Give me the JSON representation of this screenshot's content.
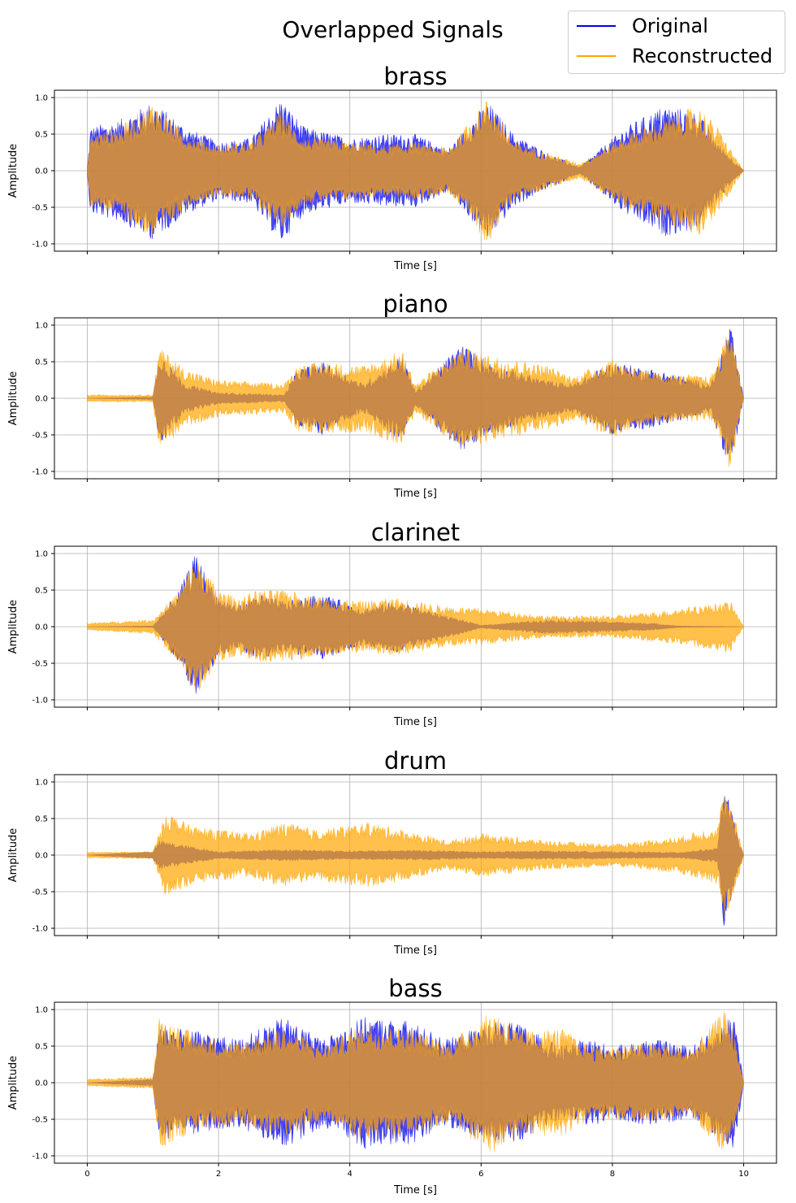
{
  "figure": {
    "title": "Overlapped Signals",
    "legend": [
      {
        "name": "Original",
        "color": "#0000ee"
      },
      {
        "name": "Reconstructed",
        "color": "#ffa500"
      }
    ]
  },
  "chart_data": [
    {
      "type": "line",
      "title": "brass",
      "xlabel": "Time [s]",
      "ylabel": "Amplitude",
      "xlim": [
        -0.5,
        10.5
      ],
      "ylim": [
        -1.1,
        1.1
      ],
      "xticks": [
        0,
        2,
        4,
        6,
        8,
        10
      ],
      "yticks": [
        -1.0,
        -0.5,
        0.0,
        0.5,
        1.0
      ],
      "show_x_tick_labels": false,
      "grid": true,
      "series": [
        {
          "name": "Original",
          "color": "#0000ee",
          "envelope": [
            [
              0,
              0
            ],
            [
              0.05,
              0.6
            ],
            [
              0.5,
              0.7
            ],
            [
              1.0,
              0.95
            ],
            [
              1.5,
              0.6
            ],
            [
              2.0,
              0.4
            ],
            [
              2.5,
              0.45
            ],
            [
              2.95,
              1.0
            ],
            [
              3.3,
              0.6
            ],
            [
              4.0,
              0.45
            ],
            [
              4.5,
              0.5
            ],
            [
              5.0,
              0.5
            ],
            [
              5.5,
              0.3
            ],
            [
              6.1,
              0.95
            ],
            [
              6.5,
              0.5
            ],
            [
              7.0,
              0.25
            ],
            [
              7.5,
              0.05
            ],
            [
              8.2,
              0.6
            ],
            [
              8.8,
              0.9
            ],
            [
              9.3,
              0.8
            ],
            [
              9.6,
              0.4
            ],
            [
              10.0,
              0.0
            ]
          ]
        },
        {
          "name": "Reconstructed",
          "color": "#ffa500",
          "envelope": [
            [
              0,
              0
            ],
            [
              0.05,
              0.5
            ],
            [
              0.5,
              0.6
            ],
            [
              1.0,
              0.95
            ],
            [
              1.5,
              0.5
            ],
            [
              2.0,
              0.35
            ],
            [
              2.5,
              0.4
            ],
            [
              2.95,
              0.8
            ],
            [
              3.3,
              0.45
            ],
            [
              4.0,
              0.4
            ],
            [
              4.5,
              0.35
            ],
            [
              5.0,
              0.4
            ],
            [
              5.5,
              0.3
            ],
            [
              6.1,
              1.0
            ],
            [
              6.5,
              0.4
            ],
            [
              7.0,
              0.25
            ],
            [
              7.5,
              0.1
            ],
            [
              8.2,
              0.5
            ],
            [
              8.8,
              0.7
            ],
            [
              9.3,
              0.9
            ],
            [
              9.6,
              0.6
            ],
            [
              10.0,
              0.0
            ]
          ]
        }
      ]
    },
    {
      "type": "line",
      "title": "piano",
      "xlabel": "Time [s]",
      "ylabel": "Amplitude",
      "xlim": [
        -0.5,
        10.5
      ],
      "ylim": [
        -1.1,
        1.1
      ],
      "xticks": [
        0,
        2,
        4,
        6,
        8,
        10
      ],
      "yticks": [
        -1.0,
        -0.5,
        0.0,
        0.5,
        1.0
      ],
      "show_x_tick_labels": false,
      "grid": true,
      "series": [
        {
          "name": "Original",
          "color": "#0000ee",
          "envelope": [
            [
              0,
              0
            ],
            [
              1.0,
              0.02
            ],
            [
              1.1,
              0.65
            ],
            [
              1.5,
              0.2
            ],
            [
              2.0,
              0.08
            ],
            [
              3.0,
              0.05
            ],
            [
              3.2,
              0.4
            ],
            [
              3.6,
              0.5
            ],
            [
              4.2,
              0.2
            ],
            [
              4.8,
              0.6
            ],
            [
              5.0,
              0.1
            ],
            [
              5.7,
              0.75
            ],
            [
              6.1,
              0.5
            ],
            [
              7.0,
              0.25
            ],
            [
              7.4,
              0.2
            ],
            [
              8.0,
              0.5
            ],
            [
              8.6,
              0.4
            ],
            [
              9.5,
              0.2
            ],
            [
              9.8,
              1.0
            ],
            [
              10.0,
              0.0
            ]
          ]
        },
        {
          "name": "Reconstructed",
          "color": "#ffa500",
          "envelope": [
            [
              0,
              0.05
            ],
            [
              1.0,
              0.05
            ],
            [
              1.1,
              0.7
            ],
            [
              1.5,
              0.4
            ],
            [
              2.0,
              0.25
            ],
            [
              3.0,
              0.2
            ],
            [
              3.2,
              0.45
            ],
            [
              3.6,
              0.5
            ],
            [
              4.2,
              0.45
            ],
            [
              4.8,
              0.65
            ],
            [
              5.0,
              0.2
            ],
            [
              5.7,
              0.7
            ],
            [
              6.1,
              0.6
            ],
            [
              7.0,
              0.45
            ],
            [
              7.4,
              0.3
            ],
            [
              8.0,
              0.55
            ],
            [
              8.6,
              0.35
            ],
            [
              9.5,
              0.3
            ],
            [
              9.8,
              1.0
            ],
            [
              10.0,
              0.0
            ]
          ]
        }
      ]
    },
    {
      "type": "line",
      "title": "clarinet",
      "xlabel": "Time [s]",
      "ylabel": "Amplitude",
      "xlim": [
        -0.5,
        10.5
      ],
      "ylim": [
        -1.1,
        1.1
      ],
      "xticks": [
        0,
        2,
        4,
        6,
        8,
        10
      ],
      "yticks": [
        -1.0,
        -0.5,
        0.0,
        0.5,
        1.0
      ],
      "show_x_tick_labels": false,
      "grid": true,
      "series": [
        {
          "name": "Original",
          "color": "#0000ee",
          "envelope": [
            [
              0,
              0
            ],
            [
              1.0,
              0.01
            ],
            [
              1.4,
              0.5
            ],
            [
              1.65,
              1.0
            ],
            [
              2.0,
              0.4
            ],
            [
              2.3,
              0.3
            ],
            [
              2.6,
              0.45
            ],
            [
              3.0,
              0.35
            ],
            [
              3.6,
              0.45
            ],
            [
              4.2,
              0.25
            ],
            [
              4.7,
              0.35
            ],
            [
              5.3,
              0.2
            ],
            [
              6.0,
              0.02
            ],
            [
              7.0,
              0.1
            ],
            [
              8.0,
              0.07
            ],
            [
              8.6,
              0.05
            ],
            [
              9.0,
              0.01
            ],
            [
              10.0,
              0.0
            ]
          ]
        },
        {
          "name": "Reconstructed",
          "color": "#ffa500",
          "envelope": [
            [
              0,
              0.05
            ],
            [
              1.0,
              0.1
            ],
            [
              1.4,
              0.5
            ],
            [
              1.65,
              0.95
            ],
            [
              2.0,
              0.5
            ],
            [
              2.3,
              0.4
            ],
            [
              2.6,
              0.5
            ],
            [
              3.0,
              0.5
            ],
            [
              3.6,
              0.4
            ],
            [
              4.2,
              0.35
            ],
            [
              4.7,
              0.4
            ],
            [
              5.3,
              0.3
            ],
            [
              6.0,
              0.25
            ],
            [
              7.0,
              0.15
            ],
            [
              8.0,
              0.15
            ],
            [
              8.6,
              0.2
            ],
            [
              9.0,
              0.25
            ],
            [
              9.8,
              0.35
            ],
            [
              10.0,
              0.0
            ]
          ]
        }
      ]
    },
    {
      "type": "line",
      "title": "drum",
      "xlabel": "Time [s]",
      "ylabel": "Amplitude",
      "xlim": [
        -0.5,
        10.5
      ],
      "ylim": [
        -1.1,
        1.1
      ],
      "xticks": [
        0,
        2,
        4,
        6,
        8,
        10
      ],
      "yticks": [
        -1.0,
        -0.5,
        0.0,
        0.5,
        1.0
      ],
      "show_x_tick_labels": false,
      "grid": true,
      "series": [
        {
          "name": "Original",
          "color": "#0000ee",
          "envelope": [
            [
              0,
              0
            ],
            [
              1.0,
              0.05
            ],
            [
              1.1,
              0.2
            ],
            [
              2.0,
              0.05
            ],
            [
              3.0,
              0.08
            ],
            [
              4.0,
              0.06
            ],
            [
              5.0,
              0.07
            ],
            [
              6.0,
              0.05
            ],
            [
              7.0,
              0.06
            ],
            [
              8.0,
              0.05
            ],
            [
              9.0,
              0.04
            ],
            [
              9.6,
              0.1
            ],
            [
              9.7,
              1.0
            ],
            [
              9.9,
              0.3
            ],
            [
              10.0,
              0.0
            ]
          ]
        },
        {
          "name": "Reconstructed",
          "color": "#ffa500",
          "envelope": [
            [
              0,
              0.04
            ],
            [
              1.0,
              0.05
            ],
            [
              1.2,
              0.6
            ],
            [
              1.6,
              0.4
            ],
            [
              2.0,
              0.35
            ],
            [
              2.5,
              0.3
            ],
            [
              3.0,
              0.45
            ],
            [
              3.5,
              0.35
            ],
            [
              4.3,
              0.45
            ],
            [
              4.8,
              0.35
            ],
            [
              5.5,
              0.2
            ],
            [
              6.0,
              0.3
            ],
            [
              7.0,
              0.2
            ],
            [
              8.0,
              0.15
            ],
            [
              8.5,
              0.2
            ],
            [
              9.0,
              0.25
            ],
            [
              9.6,
              0.4
            ],
            [
              9.7,
              0.9
            ],
            [
              9.9,
              0.4
            ],
            [
              10.0,
              0.0
            ]
          ]
        }
      ]
    },
    {
      "type": "line",
      "title": "bass",
      "xlabel": "Time [s]",
      "ylabel": "Amplitude",
      "xlim": [
        -0.5,
        10.5
      ],
      "ylim": [
        -1.1,
        1.1
      ],
      "xticks": [
        0,
        2,
        4,
        6,
        8,
        10
      ],
      "yticks": [
        -1.0,
        -0.5,
        0.0,
        0.5,
        1.0
      ],
      "show_x_tick_labels": true,
      "grid": true,
      "series": [
        {
          "name": "Original",
          "color": "#0000ee",
          "envelope": [
            [
              0,
              0
            ],
            [
              1.0,
              0.05
            ],
            [
              1.1,
              0.8
            ],
            [
              1.7,
              0.7
            ],
            [
              2.3,
              0.6
            ],
            [
              3.0,
              0.9
            ],
            [
              3.6,
              0.6
            ],
            [
              4.2,
              0.9
            ],
            [
              4.9,
              0.85
            ],
            [
              5.5,
              0.6
            ],
            [
              6.2,
              0.85
            ],
            [
              6.6,
              0.8
            ],
            [
              7.2,
              0.5
            ],
            [
              7.7,
              0.6
            ],
            [
              8.0,
              0.5
            ],
            [
              8.6,
              0.6
            ],
            [
              9.2,
              0.5
            ],
            [
              9.7,
              0.8
            ],
            [
              9.85,
              1.0
            ],
            [
              10.0,
              0.0
            ]
          ]
        },
        {
          "name": "Reconstructed",
          "color": "#ffa500",
          "envelope": [
            [
              0,
              0.05
            ],
            [
              1.0,
              0.08
            ],
            [
              1.1,
              0.9
            ],
            [
              1.7,
              0.65
            ],
            [
              2.3,
              0.55
            ],
            [
              3.0,
              0.75
            ],
            [
              3.6,
              0.5
            ],
            [
              4.2,
              0.8
            ],
            [
              4.9,
              0.75
            ],
            [
              5.5,
              0.55
            ],
            [
              6.2,
              1.0
            ],
            [
              6.6,
              0.7
            ],
            [
              7.2,
              0.75
            ],
            [
              7.7,
              0.5
            ],
            [
              8.0,
              0.5
            ],
            [
              8.6,
              0.55
            ],
            [
              9.2,
              0.45
            ],
            [
              9.7,
              1.0
            ],
            [
              9.85,
              0.7
            ],
            [
              10.0,
              0.0
            ]
          ]
        }
      ]
    }
  ]
}
